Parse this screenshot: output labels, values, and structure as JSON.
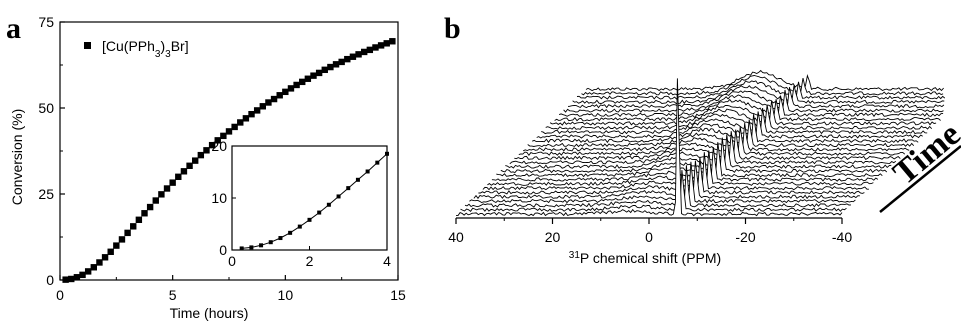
{
  "panels": {
    "a": "a",
    "b": "b"
  },
  "chart_data": [
    {
      "type": "scatter",
      "panel": "a",
      "xlabel": "Time (hours)",
      "ylabel": "Conversion (%)",
      "xlim": [
        0,
        15
      ],
      "ylim": [
        0,
        75
      ],
      "xticks": [
        0,
        5,
        10,
        15
      ],
      "yticks": [
        0,
        25,
        50,
        75
      ],
      "legend": {
        "text": "[Cu(PPh3)3Br]",
        "base": "[Cu(PPh",
        "sub1": "3",
        "mid": ")",
        "sub2": "3",
        "end": "Br]",
        "placement": "top-left"
      },
      "series": [
        {
          "marker": "square",
          "x": [
            0.25,
            0.5,
            0.75,
            1.0,
            1.25,
            1.5,
            1.75,
            2.0,
            2.25,
            2.5,
            2.75,
            3.0,
            3.25,
            3.5,
            3.75,
            4.0,
            4.25,
            4.5,
            4.75,
            5.0,
            5.25,
            5.5,
            5.75,
            6.0,
            6.25,
            6.5,
            6.75,
            7.0,
            7.25,
            7.5,
            7.75,
            8.0,
            8.25,
            8.5,
            8.75,
            9.0,
            9.25,
            9.5,
            9.75,
            10.0,
            10.25,
            10.5,
            10.75,
            11.0,
            11.25,
            11.5,
            11.75,
            12.0,
            12.25,
            12.5,
            12.75,
            13.0,
            13.25,
            13.5,
            13.75,
            14.0,
            14.25,
            14.5,
            14.75
          ],
          "y": [
            0.1,
            0.3,
            0.8,
            1.5,
            2.5,
            3.7,
            5.1,
            6.6,
            8.2,
            10.0,
            11.8,
            13.7,
            15.6,
            17.5,
            19.4,
            21.2,
            23.1,
            24.9,
            26.6,
            28.3,
            30.0,
            31.6,
            33.2,
            34.7,
            36.3,
            37.7,
            39.2,
            40.6,
            41.9,
            43.2,
            44.5,
            45.8,
            47.0,
            48.2,
            49.3,
            50.5,
            51.6,
            52.6,
            53.7,
            54.7,
            55.7,
            56.7,
            57.6,
            58.5,
            59.4,
            60.2,
            61.1,
            61.9,
            62.7,
            63.4,
            64.2,
            64.9,
            65.6,
            66.3,
            66.9,
            67.6,
            68.2,
            68.8,
            69.4
          ]
        }
      ],
      "inset": {
        "type": "line",
        "xlim": [
          0,
          4
        ],
        "ylim": [
          0,
          20
        ],
        "xticks": [
          0,
          2,
          4
        ],
        "yticks": [
          0,
          10,
          20
        ],
        "x": [
          0.25,
          0.5,
          0.75,
          1.0,
          1.25,
          1.5,
          1.75,
          2.0,
          2.25,
          2.5,
          2.75,
          3.0,
          3.25,
          3.5,
          3.75,
          4.0
        ],
        "y": [
          0.3,
          0.5,
          0.9,
          1.5,
          2.3,
          3.3,
          4.5,
          5.8,
          7.2,
          8.7,
          10.3,
          11.9,
          13.5,
          15.1,
          16.8,
          18.5
        ]
      }
    },
    {
      "type": "waterfall",
      "panel": "b",
      "xlabel_prefix": "31",
      "xlabel": "P chemical shift (PPM)",
      "xlim": [
        40,
        -40
      ],
      "xticks": [
        40,
        20,
        0,
        -20,
        -40
      ],
      "depth_label": "Time",
      "n_traces": 30,
      "peak_ppm": -6
    }
  ]
}
